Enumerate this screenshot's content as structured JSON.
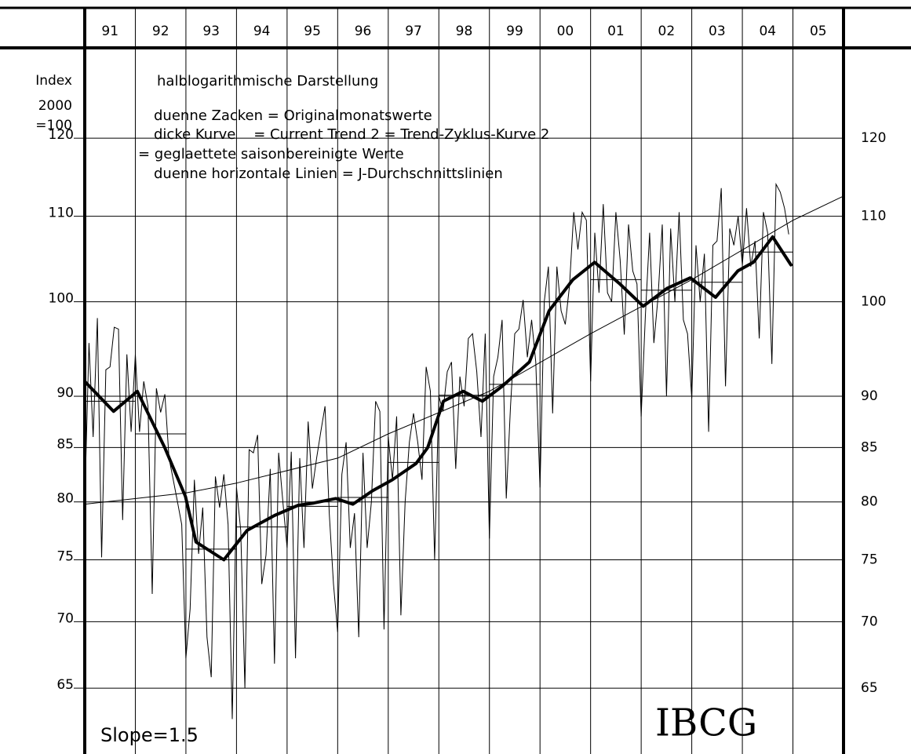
{
  "chart_data": {
    "type": "line",
    "log_scale": true,
    "grid": true,
    "ylim": [
      60.4,
      132.6
    ],
    "yticks": [
      65,
      70,
      75,
      80,
      85,
      90,
      100,
      110,
      120
    ],
    "xlim": [
      1991,
      2006
    ],
    "xticks": [
      {
        "value": 1991,
        "label": "91"
      },
      {
        "value": 1992,
        "label": "92"
      },
      {
        "value": 1993,
        "label": "93"
      },
      {
        "value": 1994,
        "label": "94"
      },
      {
        "value": 1995,
        "label": "95"
      },
      {
        "value": 1996,
        "label": "96"
      },
      {
        "value": 1997,
        "label": "97"
      },
      {
        "value": 1998,
        "label": "98"
      },
      {
        "value": 1999,
        "label": "99"
      },
      {
        "value": 2000,
        "label": "00"
      },
      {
        "value": 2001,
        "label": "01"
      },
      {
        "value": 2002,
        "label": "02"
      },
      {
        "value": 2003,
        "label": "03"
      },
      {
        "value": 2004,
        "label": "04"
      },
      {
        "value": 2005,
        "label": "05"
      }
    ],
    "axis_label": [
      "Index",
      "2000",
      "=100"
    ],
    "annotations": [
      "halblogarithmische Darstellung",
      "duenne Zacken = Originalmonatswerte",
      "dicke Kurve    = Current Trend 2 = Trend-Zyklus-Kurve 2",
      "= geglaettete saisonbereinigte Werte",
      "duenne horizontale Linien = J-Durchschnittslinien",
      "Slope=1.5",
      "IBCG"
    ],
    "monthly": [
      [
        80,
        95.5,
        86,
        98.2,
        75.2,
        92.7,
        93,
        97.2,
        97,
        78.4,
        94.3,
        86.5
      ],
      [
        94.3,
        86.5,
        91.5,
        89,
        72.2,
        90.8,
        88.4,
        90.2,
        84,
        82,
        80,
        78
      ],
      [
        67.2,
        71,
        82,
        75.5,
        79.5,
        68.8,
        65.8,
        82.3,
        79.5,
        82.5,
        78,
        62.8
      ],
      [
        81.3,
        77.5,
        65,
        84.8,
        84.5,
        86.2,
        73,
        75.4,
        83,
        66.8,
        84.5,
        80
      ],
      [
        76,
        84.6,
        67.2,
        84,
        76,
        87.5,
        81.2,
        84,
        86.5,
        89,
        79,
        73
      ],
      [
        69.2,
        82.5,
        85.5,
        76,
        79,
        68.8,
        84.5,
        76,
        80,
        89.5,
        88.5,
        69.4
      ],
      [
        86,
        82,
        88,
        70.5,
        80,
        85.5,
        88.3,
        85.5,
        82,
        93,
        90.5,
        75
      ],
      [
        90,
        88.5,
        92.5,
        93.5,
        83,
        92,
        89,
        96,
        96.5,
        92.5,
        86,
        96.5
      ],
      [
        76.8,
        92,
        94,
        98,
        80.3,
        89,
        96.5,
        97,
        100.2,
        94,
        98,
        93.5
      ],
      [
        81.3,
        100,
        104,
        88.3,
        104,
        99,
        97.5,
        101.8,
        110.5,
        106,
        110.5,
        109.5
      ],
      [
        91.5,
        108,
        101,
        111.5,
        101,
        100,
        110.5,
        104.8,
        96.4,
        109,
        103.5,
        102
      ],
      [
        88,
        98.5,
        108,
        95.5,
        100.5,
        109,
        90,
        108.5,
        100,
        110.5,
        98,
        96.5
      ],
      [
        89.8,
        106.5,
        100,
        105.5,
        86.5,
        106.5,
        107,
        113.5,
        91,
        108.5,
        106.5,
        110
      ],
      [
        104.2,
        111,
        104,
        107,
        96,
        110.5,
        108,
        93.3,
        114,
        113,
        111,
        107.8
      ]
    ],
    "annual_means": [
      89.5,
      86.3,
      75.9,
      77.8,
      79.6,
      80.4,
      83.6,
      90.1,
      91.2,
      100,
      102.5,
      101.3,
      102.2,
      105.7
    ],
    "trend": {
      "x": [
        1991,
        1991.57,
        1992.04,
        1992.58,
        1992.99,
        1993.2,
        1993.75,
        1994.21,
        1994.75,
        1995.22,
        1995.53,
        1995.96,
        1996.3,
        1996.69,
        1997.08,
        1997.55,
        1997.78,
        1998.09,
        1998.48,
        1998.86,
        1999.25,
        1999.79,
        2000.18,
        2000.65,
        2001.08,
        2001.58,
        2002.04,
        2002.51,
        2002.97,
        2003.47,
        2003.91,
        2004.22,
        2004.6,
        2004.96
      ],
      "values": [
        91.5,
        88.5,
        90.5,
        85,
        80.5,
        76.5,
        75,
        77.5,
        78.8,
        79.7,
        79.9,
        80.3,
        79.8,
        81,
        82,
        83.5,
        85,
        89.5,
        90.5,
        89.5,
        91,
        93.5,
        99,
        102.5,
        104.5,
        102,
        99.5,
        101.5,
        102.7,
        100.5,
        103.5,
        104.5,
        107.5,
        104.2
      ]
    },
    "longterm": {
      "x": [
        1991,
        1993,
        1994,
        1996,
        1997,
        1999,
        2001,
        2003,
        2005,
        2006
      ],
      "values": [
        79.8,
        80.8,
        81.7,
        84,
        86.3,
        90.5,
        96.5,
        102.5,
        109.5,
        112.5
      ]
    }
  }
}
